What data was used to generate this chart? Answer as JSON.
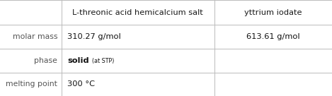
{
  "col_headers": [
    "L-threonic acid hemicalcium salt",
    "yttrium iodate"
  ],
  "row_headers": [
    "molar mass",
    "phase",
    "melting point"
  ],
  "cells": [
    [
      "310.27 g/mol",
      "613.61 g/mol"
    ],
    [
      "solid_stp",
      ""
    ],
    [
      "300 °C",
      ""
    ]
  ],
  "bg_color": "#ffffff",
  "header_text_color": "#1a1a1a",
  "row_header_color": "#555555",
  "cell_text_color": "#111111",
  "line_color": "#bbbbbb",
  "fig_width": 4.69,
  "fig_height": 1.36,
  "dpi": 100,
  "col_bounds": [
    0.0,
    0.185,
    0.645,
    1.0
  ],
  "row_bounds": [
    1.0,
    0.74,
    0.49,
    0.245,
    0.0
  ],
  "header_fontsize": 8.2,
  "row_header_fontsize": 7.8,
  "cell_fontsize": 8.2,
  "solid_fontsize": 8.2,
  "stp_fontsize": 5.8
}
